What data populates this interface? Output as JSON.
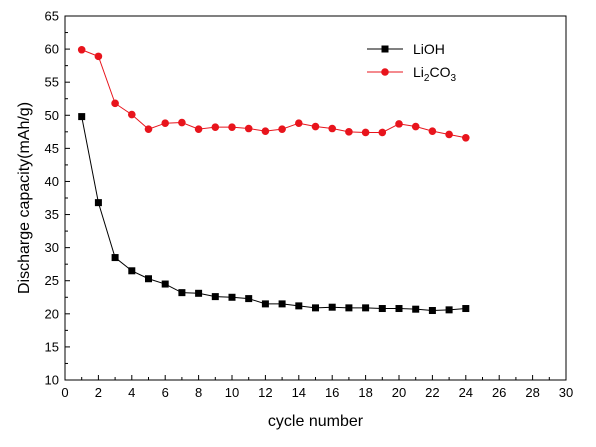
{
  "chart_data": {
    "type": "line",
    "xlabel": "cycle number",
    "ylabel": "Discharge capacity(mAh/g)",
    "xlim": [
      0,
      30
    ],
    "ylim": [
      10,
      65
    ],
    "xticks": [
      0,
      2,
      4,
      6,
      8,
      10,
      12,
      14,
      16,
      18,
      20,
      22,
      24,
      26,
      28,
      30
    ],
    "yticks": [
      10,
      15,
      20,
      25,
      30,
      35,
      40,
      45,
      50,
      55,
      60,
      65
    ],
    "grid": false,
    "legend_position": "top-right",
    "series": [
      {
        "name": "LiOH",
        "color": "#000000",
        "marker": "square",
        "x": [
          1,
          2,
          3,
          4,
          5,
          6,
          7,
          8,
          9,
          10,
          11,
          12,
          13,
          14,
          15,
          16,
          17,
          18,
          19,
          20,
          21,
          22,
          23,
          24
        ],
        "y": [
          49.8,
          36.8,
          28.5,
          26.5,
          25.3,
          24.5,
          23.2,
          23.1,
          22.6,
          22.5,
          22.3,
          21.5,
          21.5,
          21.2,
          20.9,
          21.0,
          20.9,
          20.9,
          20.8,
          20.8,
          20.7,
          20.5,
          20.6,
          20.8
        ]
      },
      {
        "name": "Li2CO3",
        "name_parts": {
          "base": "Li",
          "sub1": "2",
          "mid": "CO",
          "sub2": "3"
        },
        "color": "#e8141c",
        "marker": "circle",
        "x": [
          1,
          2,
          3,
          4,
          5,
          6,
          7,
          8,
          9,
          10,
          11,
          12,
          13,
          14,
          15,
          16,
          17,
          18,
          19,
          20,
          21,
          22,
          23,
          24
        ],
        "y": [
          59.9,
          58.9,
          51.8,
          50.1,
          47.9,
          48.8,
          48.9,
          47.9,
          48.2,
          48.2,
          48.0,
          47.6,
          47.9,
          48.8,
          48.3,
          48.0,
          47.5,
          47.4,
          47.4,
          48.7,
          48.3,
          47.6,
          47.1,
          46.6
        ]
      }
    ]
  }
}
